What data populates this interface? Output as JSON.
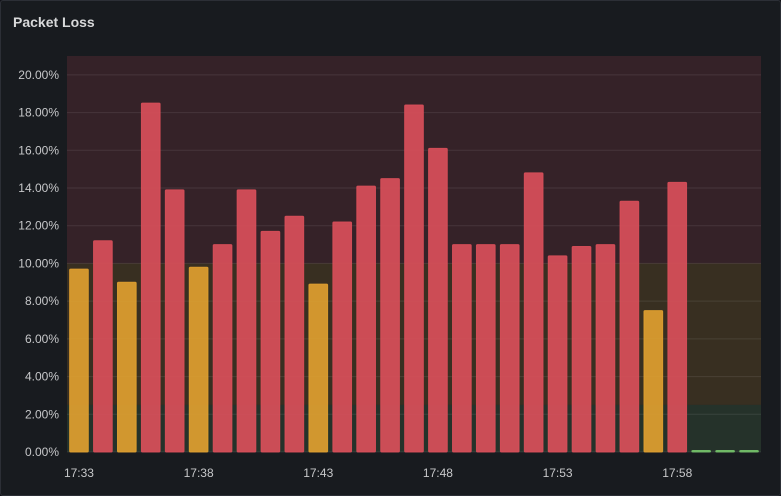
{
  "panel": {
    "title": "Packet Loss"
  },
  "chart_data": {
    "type": "bar",
    "title": "Packet Loss",
    "y_unit": "%",
    "ylim": [
      0,
      21
    ],
    "y_ticks": [
      "0.00%",
      "2.00%",
      "4.00%",
      "6.00%",
      "8.00%",
      "10.00%",
      "12.00%",
      "14.00%",
      "16.00%",
      "18.00%",
      "20.00%"
    ],
    "y_tick_values": [
      0,
      2,
      4,
      6,
      8,
      10,
      12,
      14,
      16,
      18,
      20
    ],
    "x_tick_labels": [
      "17:33",
      "17:38",
      "17:43",
      "17:48",
      "17:53",
      "17:58"
    ],
    "x_tick_indices": [
      0,
      5,
      10,
      15,
      20,
      25
    ],
    "values": [
      9.7,
      11.2,
      9.0,
      18.5,
      13.9,
      9.8,
      11.0,
      13.9,
      11.7,
      12.5,
      8.9,
      12.2,
      14.1,
      14.5,
      18.4,
      16.1,
      11.0,
      11.0,
      11.0,
      14.8,
      10.4,
      10.9,
      11.0,
      13.3,
      7.5,
      14.3,
      0,
      0,
      0
    ],
    "grid": true,
    "thresholds": [
      {
        "from": 0,
        "to": 2.5,
        "color": "#73bf69"
      },
      {
        "from": 2.5,
        "to": 10,
        "color": "#f2a531"
      },
      {
        "from": 10,
        "to": 21,
        "color": "#e0535d"
      }
    ],
    "bar_colors": {
      "high": "#d94f5a",
      "medium": "#e0a030",
      "low": "#73bf69"
    }
  }
}
